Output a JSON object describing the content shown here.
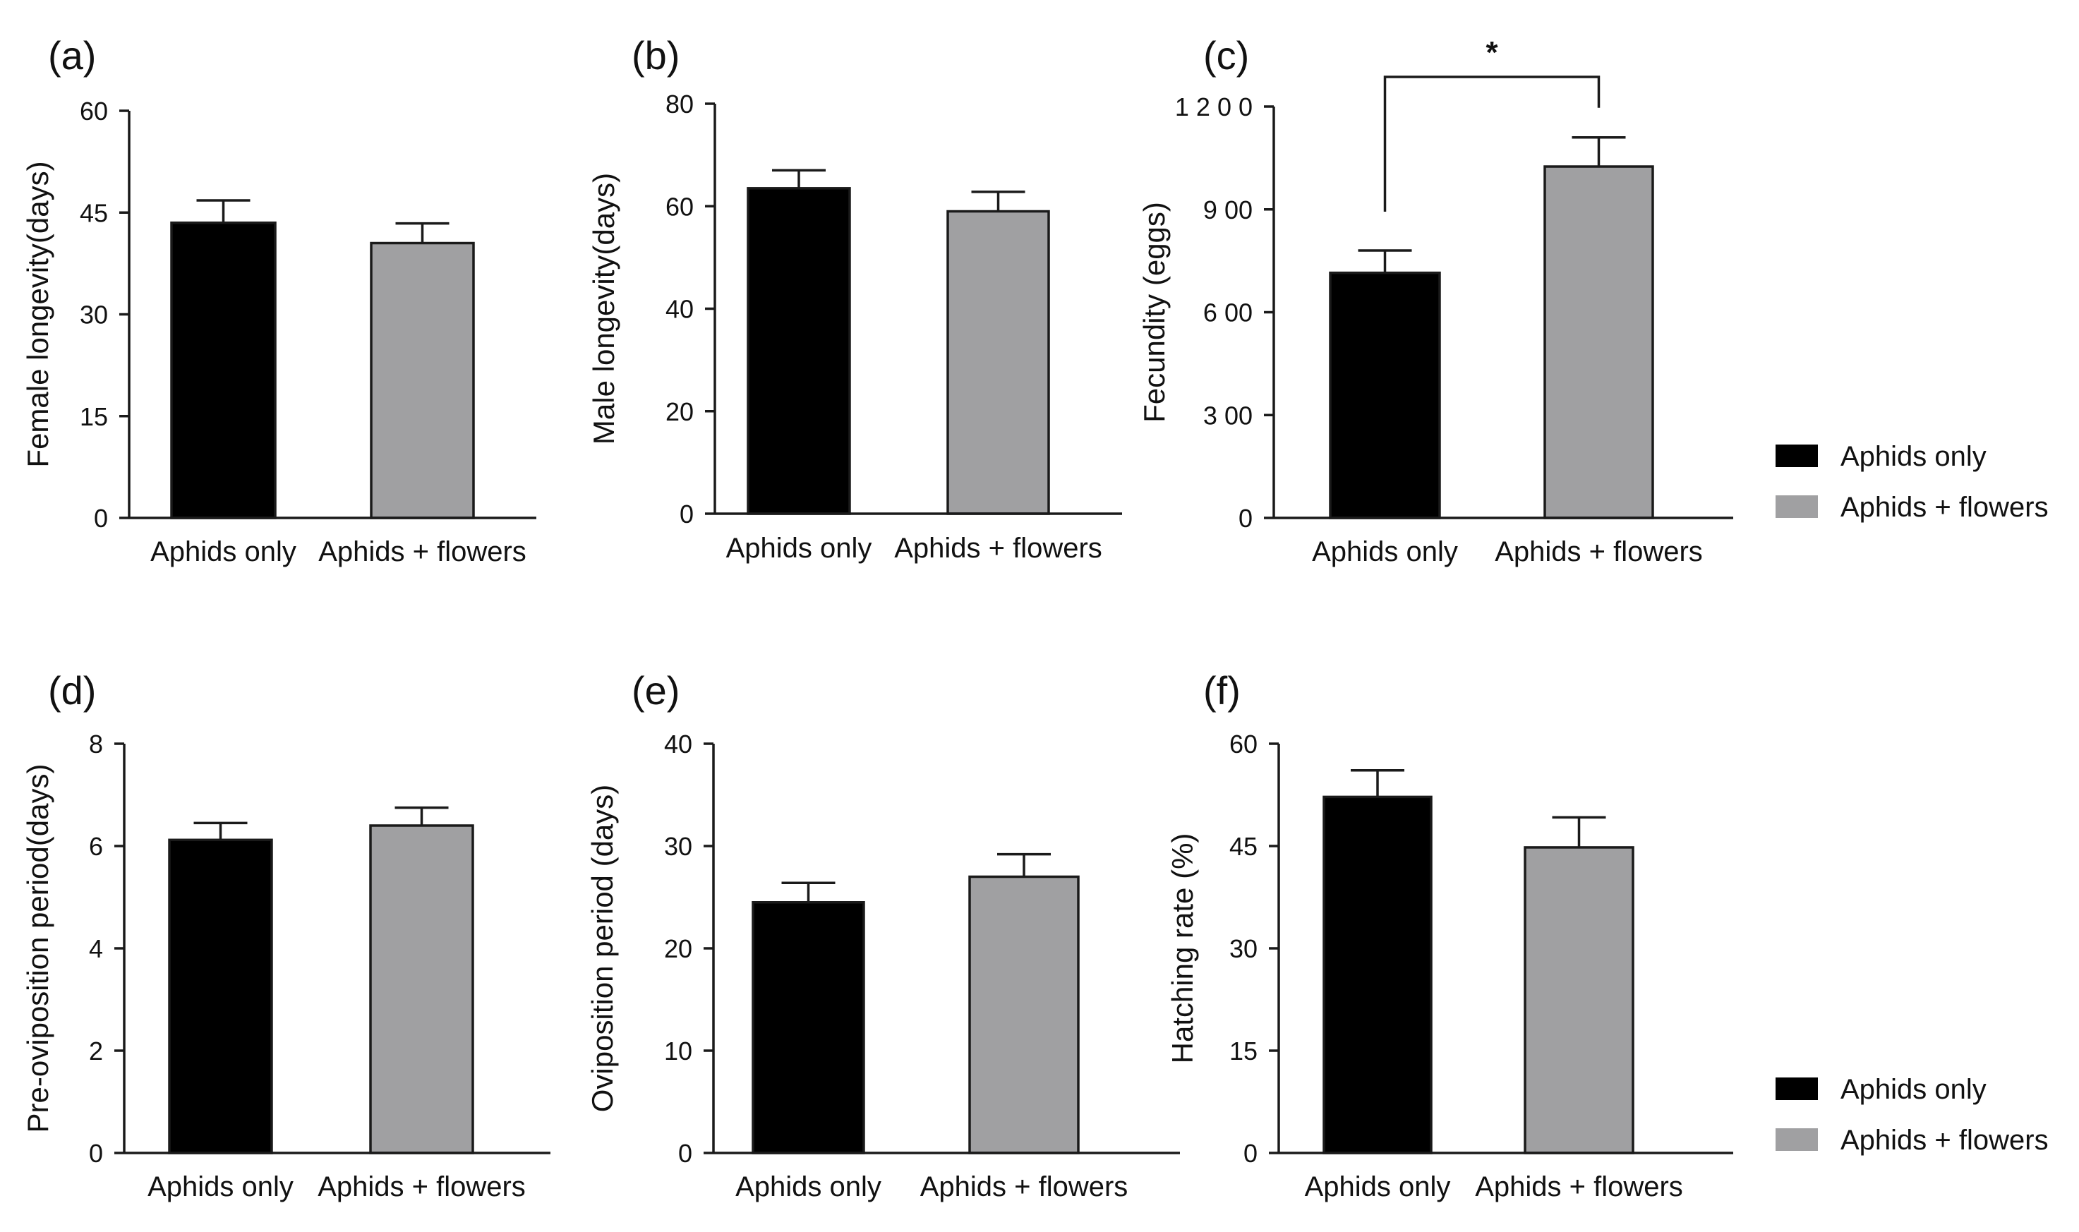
{
  "colors": {
    "aphids_only": "#000000",
    "aphids_flowers": "#a0a0a2",
    "axis": "#1a1a1a"
  },
  "legends": [
    {
      "items": [
        {
          "label": "Aphids only",
          "color": "#000000"
        },
        {
          "label": "Aphids + flowers",
          "color": "#a0a0a2"
        }
      ]
    },
    {
      "items": [
        {
          "label": "Aphids only",
          "color": "#000000"
        },
        {
          "label": "Aphids + flowers",
          "color": "#a0a0a2"
        }
      ]
    }
  ],
  "chart_data": [
    {
      "panel": "(a)",
      "type": "bar",
      "ylabel": "Female longevity(days)",
      "categories": [
        "Aphids only",
        "Aphids + flowers"
      ],
      "values": [
        43.5,
        40.5
      ],
      "errors": [
        3.3,
        2.9
      ],
      "ylim": [
        0,
        60
      ],
      "yticks": [
        "0",
        "15",
        "30",
        "45",
        "60"
      ]
    },
    {
      "panel": "(b)",
      "type": "bar",
      "ylabel": "Male longevity(days)",
      "categories": [
        "Aphids only",
        "Aphids + flowers"
      ],
      "values": [
        63.5,
        59
      ],
      "errors": [
        3.5,
        3.8
      ],
      "ylim": [
        0,
        80
      ],
      "yticks": [
        "0",
        "20",
        "40",
        "60",
        "80"
      ]
    },
    {
      "panel": "(c)",
      "type": "bar",
      "ylabel": "Fecundity (eggs)",
      "categories": [
        "Aphids only",
        "Aphids + flowers"
      ],
      "values": [
        715,
        1025
      ],
      "errors": [
        65,
        85
      ],
      "ylim": [
        0,
        1200
      ],
      "yticks": [
        "0",
        "3 00",
        "6 00",
        "9 00",
        "1 2 0 0"
      ],
      "significance": {
        "label": "*",
        "between": [
          0,
          1
        ],
        "bracket_level": 1270
      }
    },
    {
      "panel": "(d)",
      "type": "bar",
      "ylabel": "Pre-oviposition period(days)",
      "categories": [
        "Aphids only",
        "Aphids + flowers"
      ],
      "values": [
        6.12,
        6.4
      ],
      "errors": [
        0.33,
        0.35
      ],
      "ylim": [
        0,
        8
      ],
      "yticks": [
        "0",
        "2",
        "4",
        "6",
        "8"
      ]
    },
    {
      "panel": "(e)",
      "type": "bar",
      "ylabel": "Oviposition period (days)",
      "categories": [
        "Aphids only",
        "Aphids + flowers"
      ],
      "values": [
        24.5,
        27
      ],
      "errors": [
        1.9,
        2.2
      ],
      "ylim": [
        0,
        40
      ],
      "yticks": [
        "0",
        "10",
        "20",
        "30",
        "40"
      ]
    },
    {
      "panel": "(f)",
      "type": "bar",
      "ylabel": "Hatching rate (%)",
      "categories": [
        "Aphids only",
        "Aphids + flowers"
      ],
      "values": [
        52.2,
        44.8
      ],
      "errors": [
        3.9,
        4.4
      ],
      "ylim": [
        0,
        60
      ],
      "yticks": [
        "0",
        "15",
        "30",
        "45",
        "60"
      ]
    }
  ]
}
